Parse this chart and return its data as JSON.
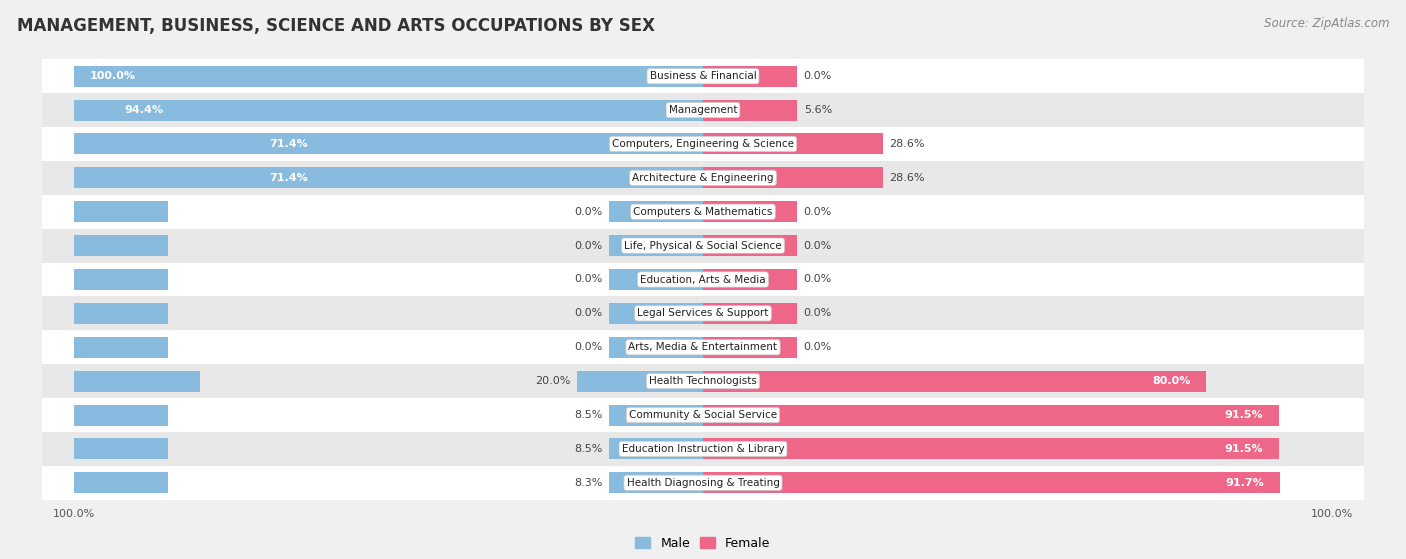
{
  "title": "MANAGEMENT, BUSINESS, SCIENCE AND ARTS OCCUPATIONS BY SEX",
  "source": "Source: ZipAtlas.com",
  "categories": [
    "Business & Financial",
    "Management",
    "Computers, Engineering & Science",
    "Architecture & Engineering",
    "Computers & Mathematics",
    "Life, Physical & Social Science",
    "Education, Arts & Media",
    "Legal Services & Support",
    "Arts, Media & Entertainment",
    "Health Technologists",
    "Community & Social Service",
    "Education Instruction & Library",
    "Health Diagnosing & Treating"
  ],
  "male": [
    100.0,
    94.4,
    71.4,
    71.4,
    0.0,
    0.0,
    0.0,
    0.0,
    0.0,
    20.0,
    8.5,
    8.5,
    8.3
  ],
  "female": [
    0.0,
    5.6,
    28.6,
    28.6,
    0.0,
    0.0,
    0.0,
    0.0,
    0.0,
    80.0,
    91.5,
    91.5,
    91.7
  ],
  "male_color": "#88bbdd",
  "female_color": "#ee6688",
  "bg_color": "#f0f0f0",
  "row_light_bg": "#ffffff",
  "row_dark_bg": "#e8e8e8",
  "title_fontsize": 12,
  "source_fontsize": 8.5,
  "bar_label_fontsize": 8,
  "category_fontsize": 7.5,
  "legend_fontsize": 9,
  "axis_label_fontsize": 8,
  "min_stub": 15.0
}
